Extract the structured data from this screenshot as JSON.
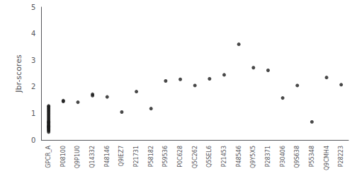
{
  "chart_data": {
    "type": "scatter",
    "ylabel": "Jbr-scores",
    "categories": [
      "GPCR_A",
      "P08100",
      "Q9P1U0",
      "Q14332",
      "P48146",
      "Q9IEZ7",
      "P21731",
      "P58182",
      "P59536",
      "P0C628",
      "Q5C262",
      "Q5SEL6",
      "P21453",
      "P48546",
      "Q9Y5X5",
      "P28371",
      "P30406",
      "Q9S638",
      "P55348",
      "Q9CMH4",
      "P28223"
    ],
    "values": [
      [
        0.3,
        0.35,
        0.38,
        0.42,
        0.45,
        0.48,
        0.5,
        0.52,
        0.55,
        0.58,
        0.62,
        0.65,
        0.68,
        0.7,
        0.75,
        0.8,
        0.85,
        0.9,
        0.95,
        1.0,
        1.05,
        1.1,
        1.15,
        1.2,
        1.25,
        1.28
      ],
      [
        1.45,
        1.48
      ],
      [
        1.42
      ],
      [
        1.72,
        1.67
      ],
      [
        1.62
      ],
      [
        1.05
      ],
      [
        1.82
      ],
      [
        1.18
      ],
      [
        2.22
      ],
      [
        2.28
      ],
      [
        2.05
      ],
      [
        2.3
      ],
      [
        2.45
      ],
      [
        3.6
      ],
      [
        2.72
      ],
      [
        2.62
      ],
      [
        1.58
      ],
      [
        2.05
      ],
      [
        0.68
      ],
      [
        2.35
      ],
      [
        2.08
      ]
    ],
    "color": "#1a1a1a",
    "ylim": [
      0,
      5
    ],
    "yticks": [
      0,
      1,
      2,
      3,
      4,
      5
    ],
    "grid": false
  }
}
